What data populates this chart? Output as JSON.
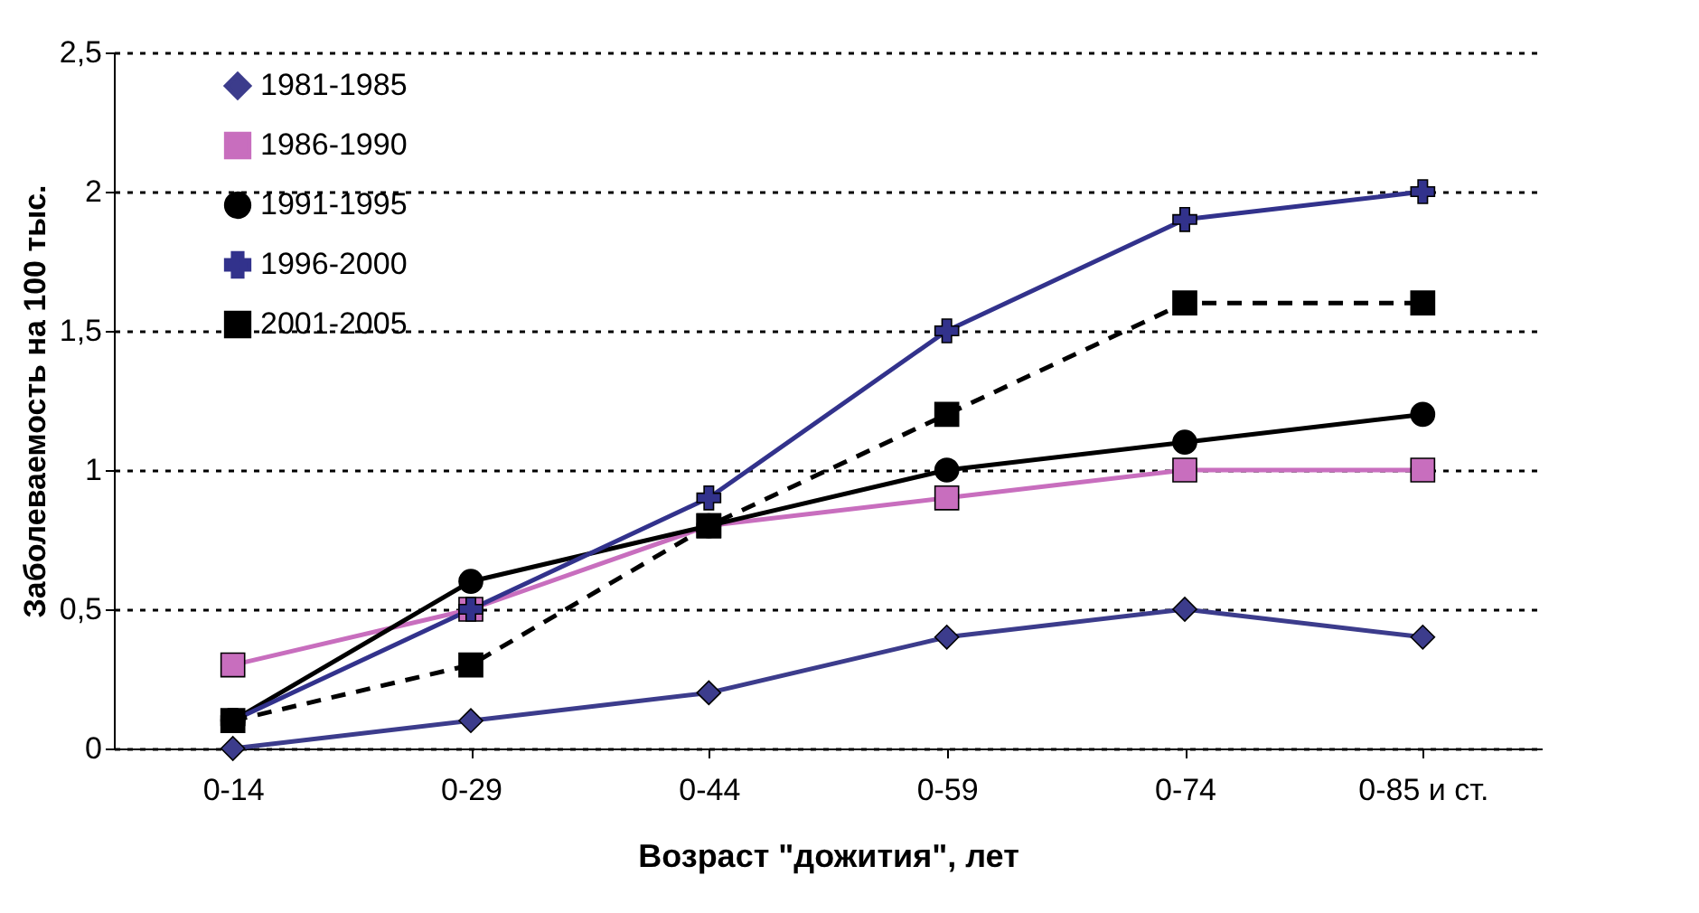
{
  "chart_data": {
    "type": "line",
    "xlabel": "Возраст \"дожития\", лет",
    "ylabel": "Заболеваемость на 100 тыс.",
    "categories": [
      "0-14",
      "0-29",
      "0-44",
      "0-59",
      "0-74",
      "0-85 и ст."
    ],
    "series": [
      {
        "name": "1981-1985",
        "color": "#3c3c8c",
        "marker": "diamond",
        "line_style": "solid",
        "values": [
          0,
          0.1,
          0.2,
          0.4,
          0.5,
          0.4
        ]
      },
      {
        "name": "1986-1990",
        "color": "#c86ebe",
        "marker": "square",
        "line_style": "solid",
        "values": [
          0.3,
          0.5,
          0.8,
          0.9,
          1.0,
          1.0
        ]
      },
      {
        "name": "1991-1995",
        "color": "#000000",
        "marker": "circle",
        "line_style": "solid",
        "values": [
          0.1,
          0.6,
          0.8,
          1.0,
          1.1,
          1.2
        ]
      },
      {
        "name": "1996-2000",
        "color": "#32328c",
        "marker": "cross",
        "line_style": "solid",
        "values": [
          0.1,
          0.5,
          0.9,
          1.5,
          1.9,
          2.0
        ]
      },
      {
        "name": "2001-2005",
        "color": "#000000",
        "marker": "square",
        "line_style": "dashed",
        "values": [
          0.1,
          0.3,
          0.8,
          1.2,
          1.6,
          1.6
        ]
      }
    ],
    "ylim": [
      0,
      2.5
    ],
    "yticks": [
      0,
      {
        "value": 0.5,
        "label": "0,5"
      },
      1,
      {
        "value": 1.5,
        "label": "1,5"
      },
      2,
      {
        "value": 2.5,
        "label": "2,5"
      }
    ],
    "grid": "y",
    "legend": "top left"
  }
}
